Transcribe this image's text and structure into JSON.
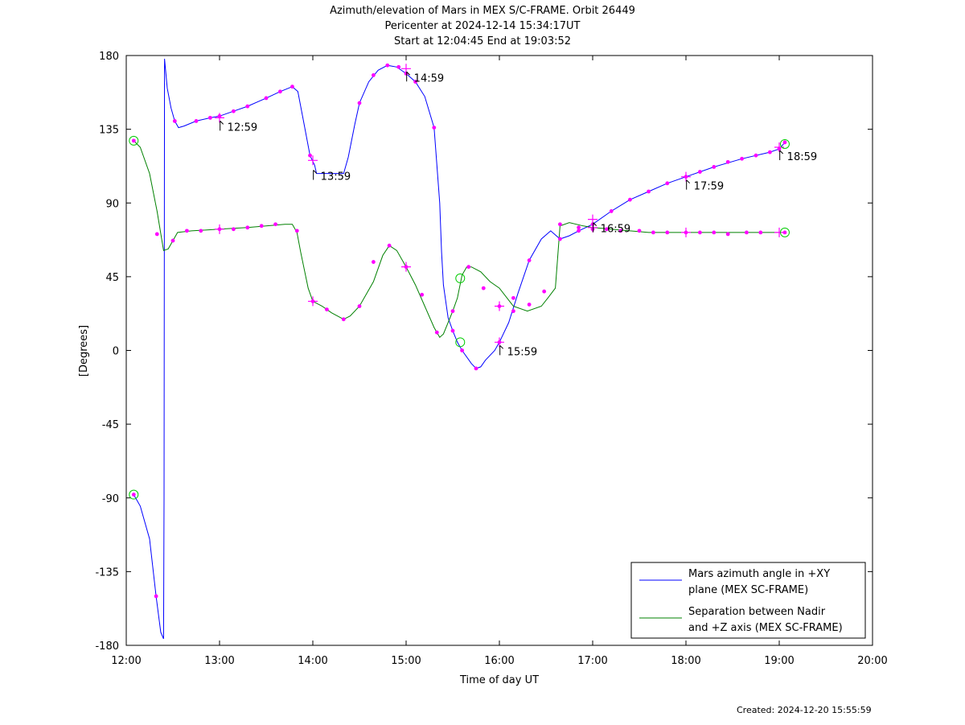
{
  "chart_data": {
    "type": "line",
    "title": [
      "Azimuth/elevation of Mars in MEX S/C-FRAME.  Orbit 26449",
      "Pericenter at 2024-12-14 15:34:17UT",
      "Start at 12:04:45 End at 19:03:52"
    ],
    "xlabel": "Time of day UT",
    "ylabel": "[Degrees]",
    "xlim": [
      12.0,
      20.0
    ],
    "ylim": [
      -180,
      180
    ],
    "x_ticks": [
      12,
      13,
      14,
      15,
      16,
      17,
      18,
      19,
      20
    ],
    "x_tick_labels": [
      "12:00",
      "13:00",
      "14:00",
      "15:00",
      "16:00",
      "17:00",
      "18:00",
      "19:00",
      "20:00"
    ],
    "y_ticks": [
      180,
      135,
      90,
      45,
      0,
      -45,
      -90,
      -135,
      -180
    ],
    "y_tick_labels": [
      "180",
      "135",
      "90",
      "45",
      "0",
      "-45",
      "-90",
      "-135",
      "-180"
    ],
    "grid": false,
    "legend_position": "bottom-right",
    "series": [
      {
        "name": "Mars azimuth angle in +XY plane (MEX SC-FRAME)",
        "legend_lines": [
          "Mars azimuth angle in +XY",
          "plane (MEX SC-FRAME)"
        ],
        "color": "#0000ff",
        "x": [
          12.08,
          12.15,
          12.25,
          12.32,
          12.37,
          12.4,
          12.405,
          12.41,
          12.44,
          12.48,
          12.52,
          12.56,
          12.62,
          12.75,
          12.9,
          13.0,
          13.15,
          13.3,
          13.5,
          13.65,
          13.78,
          13.84,
          13.9,
          13.97,
          14.02,
          14.04,
          14.1,
          14.33,
          14.38,
          14.45,
          14.5,
          14.6,
          14.7,
          14.8,
          14.9,
          15.0,
          15.1,
          15.2,
          15.3,
          15.36,
          15.38,
          15.4,
          15.45,
          15.5,
          15.55,
          15.6,
          15.7,
          15.75,
          15.8,
          15.85,
          15.95,
          16.0,
          16.1,
          16.2,
          16.32,
          16.45,
          16.55,
          16.65,
          16.75,
          16.85,
          17.0,
          17.2,
          17.4,
          17.6,
          17.8,
          18.0,
          18.3,
          18.6,
          18.9,
          19.0,
          19.06
        ],
        "y": [
          -88,
          -95,
          -115,
          -150,
          -172,
          -176,
          -90,
          178,
          160,
          148,
          140,
          136,
          137,
          140,
          142,
          143,
          146,
          149,
          154,
          158,
          161,
          158,
          140,
          119,
          113,
          108,
          108,
          108,
          118,
          138,
          151,
          164,
          171,
          174,
          173,
          169,
          164,
          155,
          136,
          90,
          60,
          40,
          20,
          12,
          5,
          0,
          -8,
          -11,
          -10,
          -6,
          0,
          5,
          17,
          35,
          55,
          68,
          73,
          68,
          70,
          73,
          77,
          85,
          92,
          97,
          102,
          106,
          112,
          117,
          121,
          123,
          127
        ]
      },
      {
        "name": "Separation between Nadir and +Z axis (MEX SC-FRAME)",
        "legend_lines": [
          "Separation between Nadir",
          "and +Z axis (MEX SC-FRAME)"
        ],
        "color": "#008000",
        "x": [
          12.08,
          12.15,
          12.25,
          12.33,
          12.4,
          12.45,
          12.5,
          12.55,
          12.7,
          13.0,
          13.3,
          13.5,
          13.7,
          13.78,
          13.83,
          13.87,
          13.95,
          14.0,
          14.1,
          14.2,
          14.33,
          14.4,
          14.5,
          14.65,
          14.75,
          14.82,
          14.9,
          15.0,
          15.1,
          15.2,
          15.3,
          15.36,
          15.4,
          15.45,
          15.5,
          15.55,
          15.6,
          15.65,
          15.7,
          15.8,
          15.9,
          16.0,
          16.15,
          16.3,
          16.45,
          16.52,
          16.6,
          16.65,
          16.75,
          16.9,
          17.0,
          17.2,
          17.4,
          17.6,
          17.8,
          18.0,
          18.3,
          18.6,
          18.9,
          19.06
        ],
        "y": [
          128,
          124,
          108,
          85,
          61,
          62,
          67,
          72,
          73,
          74,
          75,
          76,
          77,
          77,
          72,
          60,
          38,
          30,
          27,
          23,
          19,
          21,
          27,
          42,
          58,
          64,
          61,
          51,
          40,
          27,
          14,
          8,
          10,
          17,
          24,
          32,
          46,
          51,
          51,
          48,
          42,
          38,
          27,
          24,
          27,
          32,
          38,
          76,
          78,
          76,
          75,
          74,
          73,
          72,
          72,
          72,
          72,
          72,
          72,
          72
        ]
      }
    ],
    "markers": {
      "color": "#ff00ff",
      "azimuth_points": [
        [
          12.08,
          -88
        ],
        [
          12.32,
          -150
        ],
        [
          12.52,
          140
        ],
        [
          12.75,
          140
        ],
        [
          12.9,
          142
        ],
        [
          13.0,
          143
        ],
        [
          13.15,
          146
        ],
        [
          13.3,
          149
        ],
        [
          13.5,
          154
        ],
        [
          13.65,
          158
        ],
        [
          13.78,
          161
        ],
        [
          13.97,
          119
        ],
        [
          14.5,
          151
        ],
        [
          14.65,
          168
        ],
        [
          14.8,
          174
        ],
        [
          14.92,
          173
        ],
        [
          15.0,
          169
        ],
        [
          15.1,
          164
        ],
        [
          15.3,
          136
        ],
        [
          15.5,
          12
        ],
        [
          15.6,
          0
        ],
        [
          15.75,
          -11
        ],
        [
          16.0,
          5
        ],
        [
          16.15,
          32
        ],
        [
          16.32,
          55
        ],
        [
          16.65,
          68
        ],
        [
          16.85,
          73
        ],
        [
          17.0,
          77
        ],
        [
          17.2,
          85
        ],
        [
          17.4,
          92
        ],
        [
          17.6,
          97
        ],
        [
          17.8,
          102
        ],
        [
          18.0,
          106
        ],
        [
          18.15,
          109
        ],
        [
          18.3,
          112
        ],
        [
          18.45,
          115
        ],
        [
          18.6,
          117
        ],
        [
          18.75,
          119
        ],
        [
          18.9,
          121
        ],
        [
          19.0,
          123
        ],
        [
          19.06,
          127
        ]
      ],
      "separation_points": [
        [
          12.08,
          128
        ],
        [
          12.33,
          71
        ],
        [
          12.5,
          67
        ],
        [
          12.65,
          73
        ],
        [
          12.8,
          73
        ],
        [
          13.0,
          74
        ],
        [
          13.15,
          74
        ],
        [
          13.3,
          75
        ],
        [
          13.45,
          76
        ],
        [
          13.6,
          77
        ],
        [
          13.83,
          73
        ],
        [
          14.0,
          30
        ],
        [
          14.15,
          25
        ],
        [
          14.33,
          19
        ],
        [
          14.5,
          27
        ],
        [
          14.65,
          54
        ],
        [
          14.82,
          64
        ],
        [
          15.0,
          51
        ],
        [
          15.17,
          34
        ],
        [
          15.33,
          11
        ],
        [
          15.5,
          24
        ],
        [
          15.67,
          51
        ],
        [
          15.83,
          38
        ],
        [
          16.0,
          27
        ],
        [
          16.15,
          24
        ],
        [
          16.32,
          28
        ],
        [
          16.48,
          36
        ],
        [
          16.65,
          77
        ],
        [
          16.85,
          75
        ],
        [
          17.0,
          74
        ],
        [
          17.15,
          74
        ],
        [
          17.3,
          73
        ],
        [
          17.5,
          73
        ],
        [
          17.65,
          72
        ],
        [
          17.8,
          72
        ],
        [
          18.0,
          72
        ],
        [
          18.15,
          72
        ],
        [
          18.3,
          72
        ],
        [
          18.45,
          71
        ],
        [
          18.65,
          72
        ],
        [
          18.8,
          72
        ],
        [
          19.06,
          72
        ]
      ],
      "hour_crosses": [
        [
          13.0,
          142
        ],
        [
          13.0,
          74
        ],
        [
          14.0,
          116
        ],
        [
          14.0,
          30
        ],
        [
          15.0,
          172
        ],
        [
          15.0,
          51
        ],
        [
          16.0,
          5
        ],
        [
          16.0,
          27
        ],
        [
          17.0,
          80
        ],
        [
          17.0,
          75
        ],
        [
          18.0,
          106
        ],
        [
          18.0,
          72
        ],
        [
          19.0,
          124
        ],
        [
          19.0,
          72
        ]
      ],
      "start_end_circles": [
        [
          12.08,
          -88
        ],
        [
          12.08,
          128
        ],
        [
          15.58,
          5
        ],
        [
          15.58,
          44
        ],
        [
          19.06,
          126
        ],
        [
          19.06,
          72
        ]
      ]
    },
    "annotations": [
      {
        "text": "12:59",
        "x": 12.98,
        "y": 142
      },
      {
        "text": "13:59",
        "x": 13.98,
        "y": 112
      },
      {
        "text": "14:59",
        "x": 14.98,
        "y": 172
      },
      {
        "text": "15:59",
        "x": 15.98,
        "y": 5
      },
      {
        "text": "16:59",
        "x": 16.98,
        "y": 80
      },
      {
        "text": "17:59",
        "x": 17.98,
        "y": 106
      },
      {
        "text": "18:59",
        "x": 18.98,
        "y": 124
      }
    ]
  },
  "footer": "Created: 2024-12-20 15:55:59"
}
